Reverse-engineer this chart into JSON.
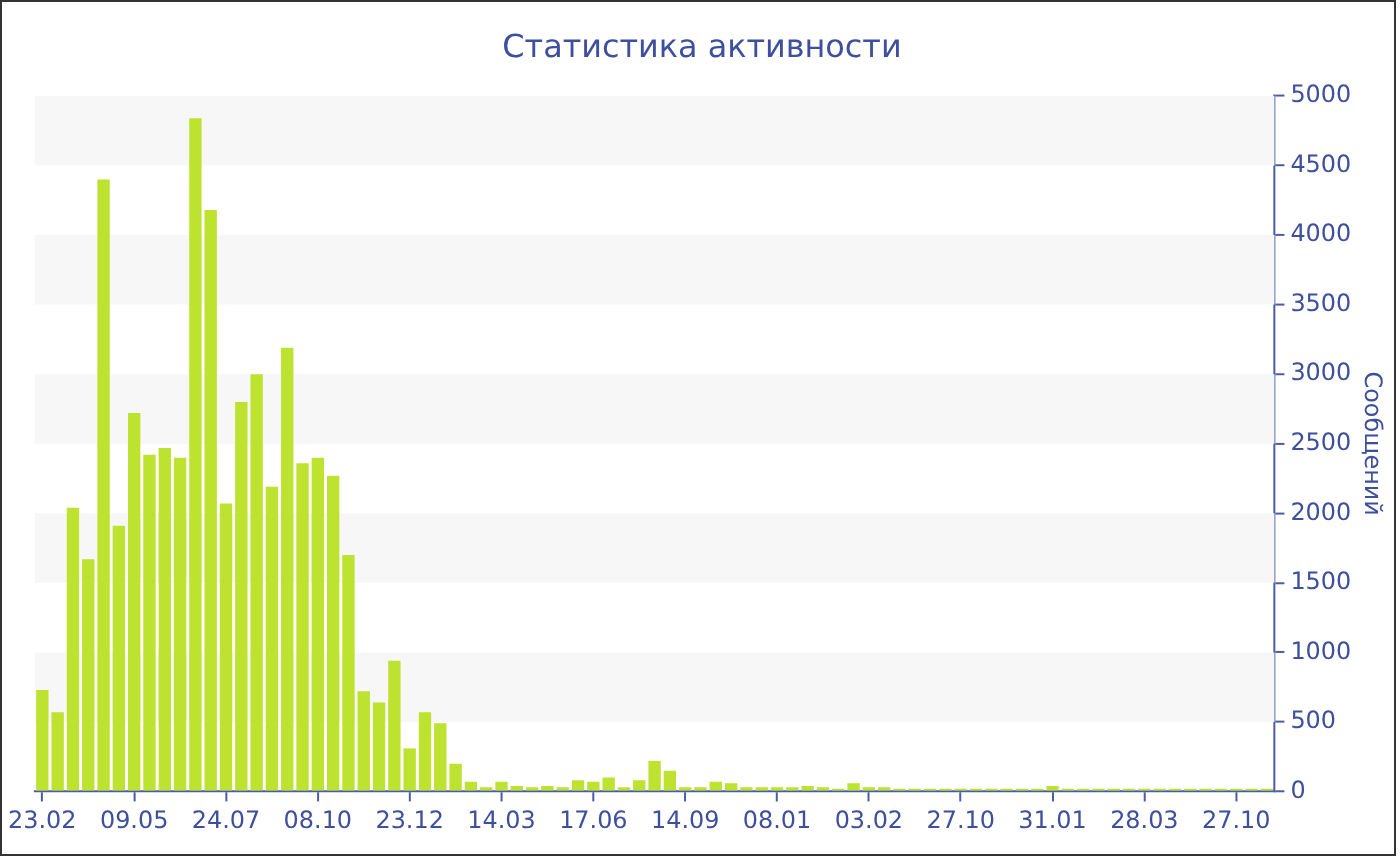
{
  "chart_data": {
    "type": "bar",
    "title": "Статистика активности",
    "y2label": "Сообщений",
    "categories": [
      "23.02",
      null,
      null,
      null,
      null,
      null,
      "09.05",
      null,
      null,
      null,
      null,
      null,
      "24.07",
      null,
      null,
      null,
      null,
      null,
      "08.10",
      null,
      null,
      null,
      null,
      null,
      "23.12",
      null,
      null,
      null,
      null,
      null,
      "14.03",
      null,
      null,
      null,
      null,
      null,
      "17.06",
      null,
      null,
      null,
      null,
      null,
      "14.09",
      null,
      null,
      null,
      null,
      null,
      "08.01",
      null,
      null,
      null,
      null,
      null,
      "03.02",
      null,
      null,
      null,
      null,
      null,
      "27.10",
      null,
      null,
      null,
      null,
      null,
      "31.01",
      null,
      null,
      null,
      null,
      null,
      "28.03",
      null,
      null,
      null,
      null,
      null,
      "27.10",
      null,
      null
    ],
    "series": [
      {
        "color": "#bde22f",
        "axis": "y2",
        "values": [
          730,
          570,
          2040,
          1670,
          4400,
          1910,
          2720,
          2420,
          2470,
          2400,
          4840,
          4180,
          2070,
          2800,
          3000,
          2190,
          3190,
          2360,
          2400,
          2270,
          1700,
          720,
          640,
          940,
          310,
          570,
          490,
          200,
          70,
          30,
          70,
          40,
          30,
          40,
          30,
          80,
          70,
          100,
          30,
          80,
          220,
          150,
          30,
          30,
          70,
          60,
          30,
          30,
          30,
          30,
          40,
          30,
          20,
          60,
          30,
          30,
          20,
          20,
          20,
          20,
          20,
          20,
          20,
          20,
          20,
          20,
          40,
          20,
          20,
          20,
          20,
          20,
          20,
          20,
          20,
          20,
          20,
          20,
          20,
          20,
          20
        ]
      }
    ],
    "y2lim": [
      0,
      5000
    ],
    "y2ticks": [
      0,
      500,
      1000,
      1500,
      2000,
      2500,
      3000,
      3500,
      4000,
      4500,
      5000
    ],
    "bands": [
      {
        "axis": "y2",
        "from": 500,
        "to": 1000,
        "color": "#f7f7f7"
      },
      {
        "axis": "y2",
        "from": 1500,
        "to": 2000,
        "color": "#f7f7f7"
      },
      {
        "axis": "y2",
        "from": 2500,
        "to": 3000,
        "color": "#f7f7f7"
      },
      {
        "axis": "y2",
        "from": 3500,
        "to": 4000,
        "color": "#f7f7f7"
      },
      {
        "axis": "y2",
        "from": 4500,
        "to": 5000,
        "color": "#f7f7f7"
      }
    ],
    "legend": false
  }
}
